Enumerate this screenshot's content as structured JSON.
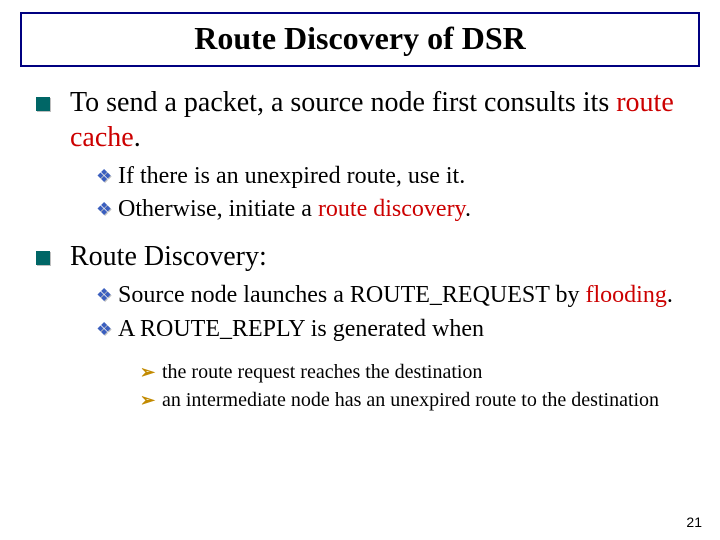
{
  "title": "Route Discovery of DSR",
  "page_number": "21",
  "colors": {
    "title_border": "#000080",
    "lvl1_bullet": "#006666",
    "lvl2_bullet": "#3b5fbf",
    "lvl3_bullet": "#c28a00",
    "highlight": "#cc0000"
  },
  "body": {
    "p1": {
      "pre": "To send a packet, a source node first consults its ",
      "hl": "route cache",
      "post": "."
    },
    "p1_children": {
      "a": "If there is an unexpired route, use it.",
      "b_pre": "Otherwise, initiate a ",
      "b_hl": "route discovery",
      "b_post": "."
    },
    "p2": "Route Discovery:",
    "p2_children": {
      "a_pre": "Source node launches a ROUTE_REQUEST by ",
      "a_hl": "flooding",
      "a_post": ".",
      "b": "A ROUTE_REPLY is generated when"
    },
    "p2_grandchildren": {
      "a": "the route request reaches the destination",
      "b": "an intermediate node has an unexpired route to the destination"
    }
  }
}
